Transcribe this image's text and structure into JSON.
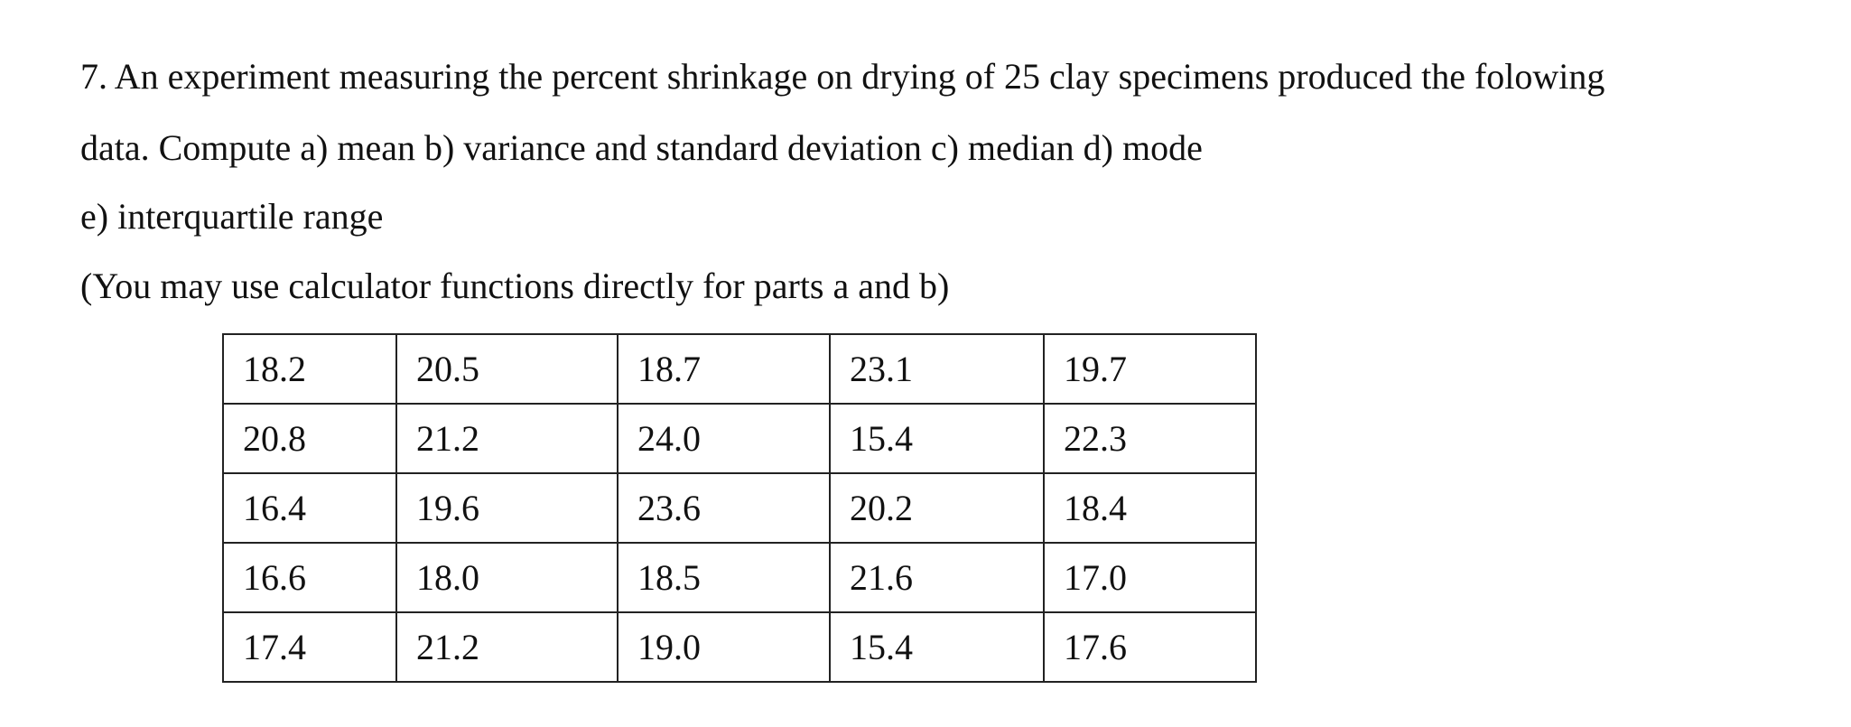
{
  "question": {
    "lines": [
      "7. An experiment measuring the percent shrinkage on drying of 25 clay specimens produced the folowing",
      "data. Compute a) mean b) variance and standard deviation c) median d) mode",
      "e) interquartile range",
      "(You may use calculator functions directly for parts a and b)"
    ]
  },
  "table": {
    "rows": [
      [
        "18.2",
        "20.5",
        "18.7",
        "23.1",
        "19.7"
      ],
      [
        "20.8",
        "21.2",
        "24.0",
        "15.4",
        "22.3"
      ],
      [
        "16.4",
        "19.6",
        "23.6",
        "20.2",
        "18.4"
      ],
      [
        "16.6",
        "18.0",
        "18.5",
        "21.6",
        "17.0"
      ],
      [
        "17.4",
        "21.2",
        "19.0",
        "15.4",
        "17.6"
      ]
    ]
  }
}
